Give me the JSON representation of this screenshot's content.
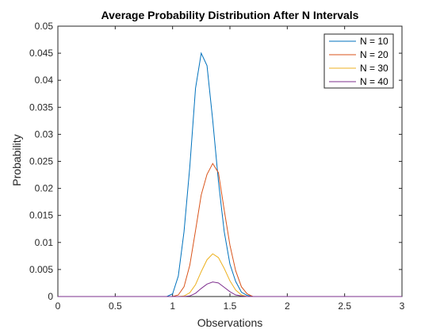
{
  "chart_data": {
    "type": "line",
    "title": "Average Probability Distribution After N Intervals",
    "xlabel": "Observations",
    "ylabel": "Probability",
    "xlim": [
      0,
      3
    ],
    "ylim": [
      0,
      0.05
    ],
    "xticks": [
      "0",
      "0.5",
      "1",
      "1.5",
      "2",
      "2.5",
      "3"
    ],
    "yticks": [
      "0",
      "0.005",
      "0.01",
      "0.015",
      "0.02",
      "0.025",
      "0.03",
      "0.035",
      "0.04",
      "0.045",
      "0.05"
    ],
    "grid": false,
    "legend_position": "top-right",
    "x": [
      0,
      0.95,
      1.0,
      1.05,
      1.1,
      1.15,
      1.2,
      1.25,
      1.3,
      1.35,
      1.4,
      1.45,
      1.5,
      1.55,
      1.6,
      1.65,
      1.7,
      1.75,
      1.8,
      1.85,
      1.9,
      1.95,
      2.0,
      3.0
    ],
    "series": [
      {
        "name": "N = 10",
        "color": "#0072BD",
        "values": [
          0,
          0,
          0.0005,
          0.0038,
          0.012,
          0.024,
          0.0385,
          0.045,
          0.0427,
          0.0326,
          0.0213,
          0.012,
          0.006,
          0.0028,
          0.0008,
          0.0002,
          0,
          0,
          0,
          0,
          0,
          0,
          0,
          0
        ]
      },
      {
        "name": "N = 20",
        "color": "#D95319",
        "values": [
          0,
          0,
          0,
          0.0003,
          0.0018,
          0.0058,
          0.0122,
          0.0188,
          0.0226,
          0.0246,
          0.0229,
          0.016,
          0.0095,
          0.0048,
          0.0018,
          0.0005,
          0,
          0,
          0,
          0,
          0,
          0,
          0,
          0
        ]
      },
      {
        "name": "N = 30",
        "color": "#EDB120",
        "values": [
          0,
          0,
          0,
          0,
          0.0001,
          0.0007,
          0.0022,
          0.0046,
          0.0068,
          0.0079,
          0.0072,
          0.0052,
          0.0029,
          0.0012,
          0.0003,
          0,
          0,
          0,
          0,
          0,
          0,
          0,
          0,
          0
        ]
      },
      {
        "name": "N = 40",
        "color": "#7E2F8E",
        "values": [
          0,
          0,
          0,
          0,
          0,
          0.0001,
          0.0006,
          0.0015,
          0.0023,
          0.0027,
          0.0025,
          0.0017,
          0.0009,
          0.0003,
          0.0001,
          0,
          0,
          0,
          0,
          0,
          0,
          0,
          0,
          0
        ]
      }
    ]
  }
}
